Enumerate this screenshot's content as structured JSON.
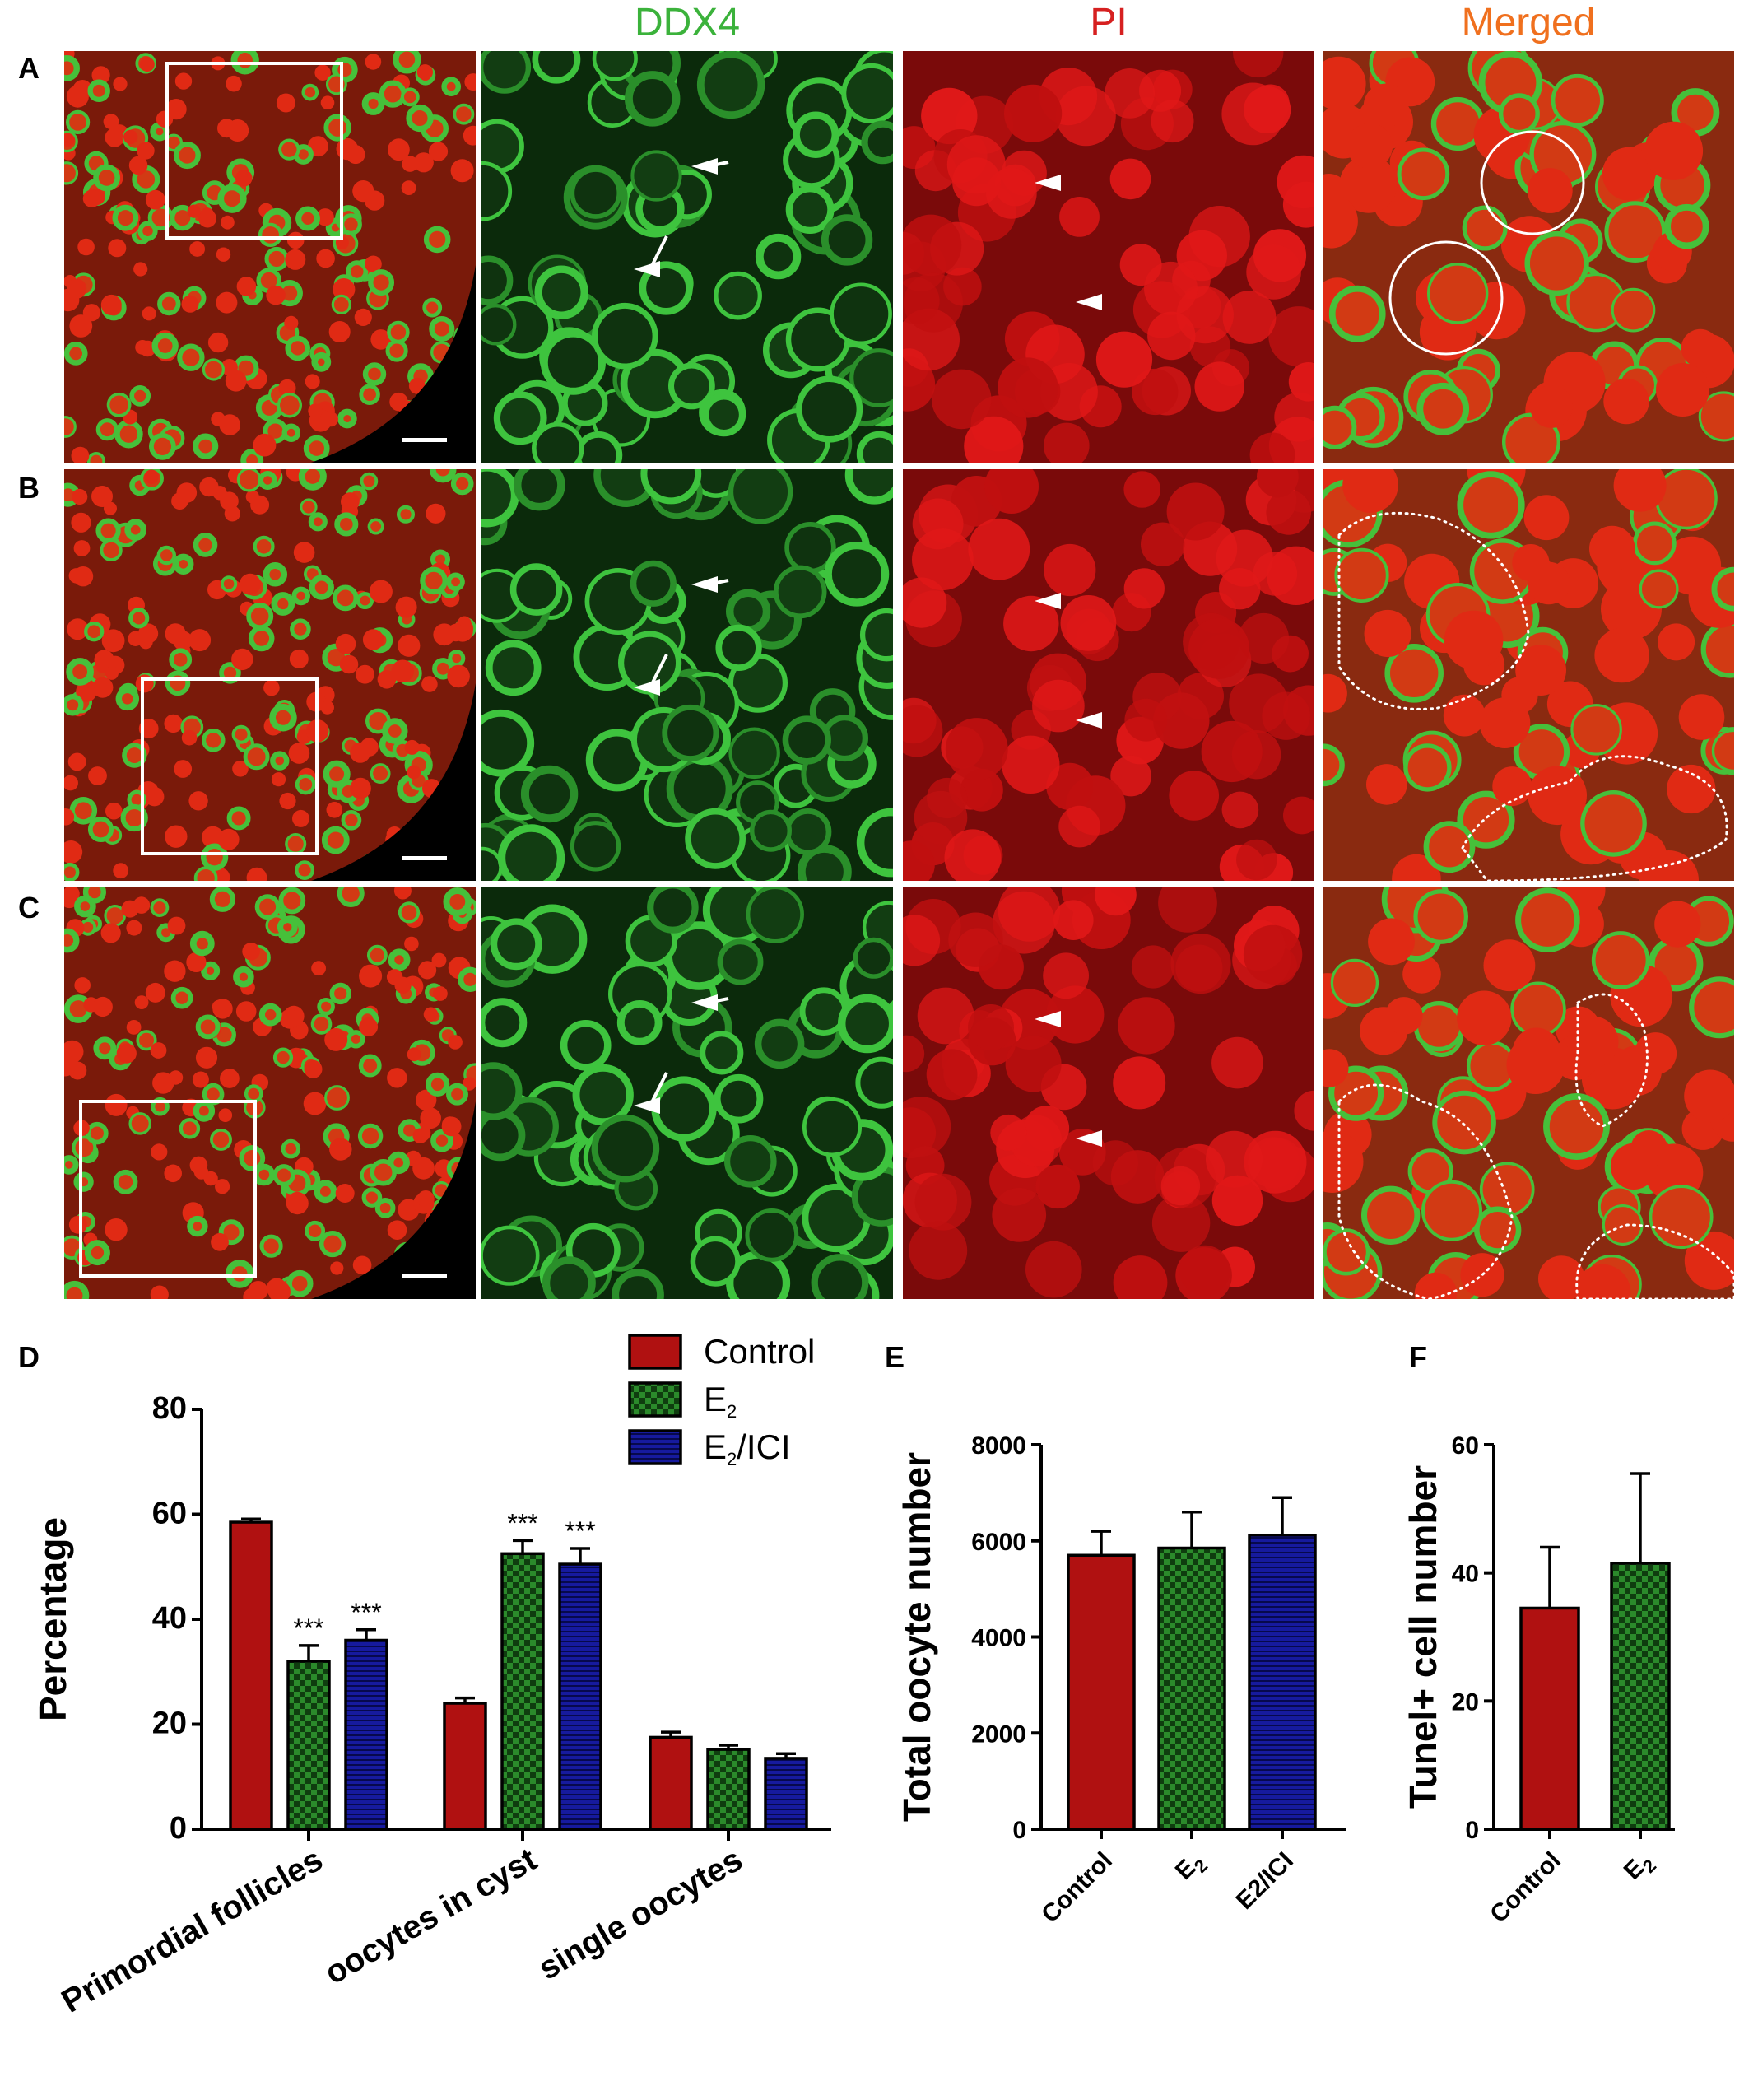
{
  "column_headers": {
    "ddx4": {
      "text": "DDX4",
      "color": "#3bb23b"
    },
    "pi": {
      "text": "PI",
      "color": "#d62020"
    },
    "merged": {
      "text": "Merged",
      "color": "#f0701e"
    }
  },
  "row_labels": [
    "A",
    "B",
    "C"
  ],
  "panel_labels": {
    "d": "D",
    "e": "E",
    "f": "F"
  },
  "colors": {
    "control": "#b01111",
    "e2": "#1f6b1f",
    "e2ici": "#161a9e"
  },
  "chart_data": [
    {
      "type": "bar",
      "panel": "D",
      "categories": [
        "Primordial follicles",
        "oocytes in cyst",
        "single oocytes"
      ],
      "series": [
        {
          "name": "Control",
          "values": [
            58.5,
            24,
            17.5
          ],
          "errors": [
            0.6,
            1.0,
            1.0
          ],
          "significance": [
            "",
            "",
            ""
          ]
        },
        {
          "name": "E2",
          "values": [
            32,
            52.5,
            15.2
          ],
          "errors": [
            3.0,
            2.5,
            0.8
          ],
          "significance": [
            "***",
            "***",
            ""
          ]
        },
        {
          "name": "E2/ICI",
          "values": [
            36,
            50.5,
            13.5
          ],
          "errors": [
            2.0,
            3.0,
            0.9
          ],
          "significance": [
            "***",
            "***",
            ""
          ]
        }
      ],
      "ylabel": "Percentage",
      "xlabel": "",
      "ylim": [
        0,
        80
      ],
      "yticks": [
        0,
        20,
        40,
        60,
        80
      ],
      "legend": [
        {
          "text": "Control",
          "sub": ""
        },
        {
          "text": "E",
          "sub": "2",
          "suffix": ""
        },
        {
          "text": "E",
          "sub": "2",
          "suffix": "/ICI"
        }
      ],
      "legend_position": "top-right"
    },
    {
      "type": "bar",
      "panel": "E",
      "categories": [
        "Control",
        "E2",
        "E2/ICI"
      ],
      "values": [
        5700,
        5850,
        6120
      ],
      "errors": [
        500,
        750,
        780
      ],
      "ylabel": "Total oocyte number",
      "xlabel": "",
      "ylim": [
        0,
        8000
      ],
      "yticks": [
        0,
        2000,
        4000,
        6000,
        8000
      ]
    },
    {
      "type": "bar",
      "panel": "F",
      "categories": [
        "Control",
        "E2"
      ],
      "values": [
        34.5,
        41.5
      ],
      "errors": [
        9.5,
        14.0
      ],
      "ylabel": "Tunel+ cell number",
      "xlabel": "",
      "ylim": [
        0,
        60
      ],
      "yticks": [
        0,
        20,
        40,
        60
      ]
    }
  ]
}
